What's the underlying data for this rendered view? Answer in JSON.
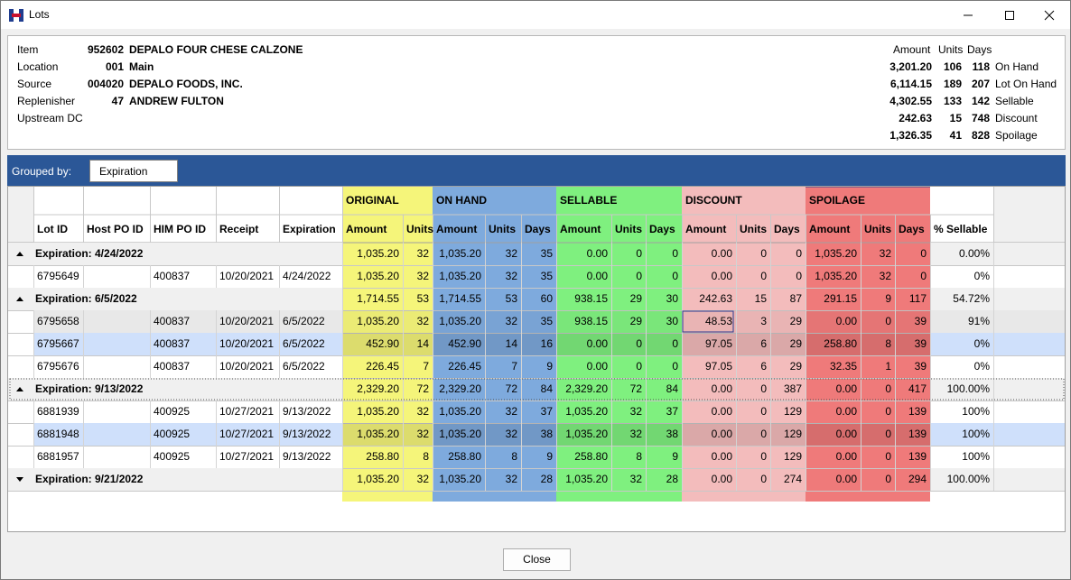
{
  "window": {
    "title": "Lots"
  },
  "info": {
    "labels": [
      "Item",
      "Location",
      "Source",
      "Replenisher",
      "Upstream DC"
    ],
    "codes": [
      "952602",
      "001",
      "004020",
      "47",
      ""
    ],
    "names": [
      "DEPALO FOUR CHESE CALZONE",
      "Main",
      "DEPALO FOODS, INC.",
      "ANDREW FULTON",
      ""
    ],
    "summary_headers": [
      "Amount",
      "Units",
      "Days"
    ],
    "summary": [
      {
        "amount": "3,201.20",
        "units": "106",
        "days": "118",
        "label": "On Hand"
      },
      {
        "amount": "6,114.15",
        "units": "189",
        "days": "207",
        "label": "Lot On Hand"
      },
      {
        "amount": "4,302.55",
        "units": "133",
        "days": "142",
        "label": "Sellable"
      },
      {
        "amount": "242.63",
        "units": "15",
        "days": "748",
        "label": "Discount"
      },
      {
        "amount": "1,326.35",
        "units": "41",
        "days": "828",
        "label": "Spoilage"
      }
    ]
  },
  "group": {
    "label": "Grouped by:",
    "value": "Expiration"
  },
  "bands": [
    "ORIGINAL",
    "ON HAND",
    "SELLABLE",
    "DISCOUNT",
    "SPOILAGE"
  ],
  "columns": [
    "Lot ID",
    "Host PO ID",
    "HIM PO ID",
    "Receipt",
    "Expiration",
    "Amount",
    "Units",
    "Amount",
    "Units",
    "Days",
    "Amount",
    "Units",
    "Days",
    "Amount",
    "Units",
    "Days",
    "Amount",
    "Units",
    "Days",
    "% Sellable"
  ],
  "rows": [
    {
      "type": "group",
      "exp": "down",
      "label": "Expiration: 4/24/2022",
      "vals": [
        "1,035.20",
        "32",
        "1,035.20",
        "32",
        "35",
        "0.00",
        "0",
        "0",
        "0.00",
        "0",
        "0",
        "1,035.20",
        "32",
        "0",
        "0.00%"
      ]
    },
    {
      "type": "data",
      "lot": "6795649",
      "host": "",
      "him": "400837",
      "receipt": "10/20/2021",
      "expiration": "4/24/2022",
      "vals": [
        "1,035.20",
        "32",
        "1,035.20",
        "32",
        "35",
        "0.00",
        "0",
        "0",
        "0.00",
        "0",
        "0",
        "1,035.20",
        "32",
        "0",
        "0%"
      ]
    },
    {
      "type": "group",
      "exp": "down",
      "label": "Expiration: 6/5/2022",
      "vals": [
        "1,714.55",
        "53",
        "1,714.55",
        "53",
        "60",
        "938.15",
        "29",
        "30",
        "242.63",
        "15",
        "87",
        "291.15",
        "9",
        "117",
        "54.72%"
      ]
    },
    {
      "type": "data",
      "lot": "6795658",
      "host": "",
      "him": "400837",
      "receipt": "10/20/2021",
      "expiration": "6/5/2022",
      "vals": [
        "1,035.20",
        "32",
        "1,035.20",
        "32",
        "35",
        "938.15",
        "29",
        "30",
        "48.53",
        "3",
        "29",
        "0.00",
        "0",
        "39",
        "91%"
      ]
    },
    {
      "type": "data",
      "lot": "6795667",
      "host": "",
      "him": "400837",
      "receipt": "10/20/2021",
      "expiration": "6/5/2022",
      "vals": [
        "452.90",
        "14",
        "452.90",
        "14",
        "16",
        "0.00",
        "0",
        "0",
        "97.05",
        "6",
        "29",
        "258.80",
        "8",
        "39",
        "0%"
      ]
    },
    {
      "type": "data",
      "lot": "6795676",
      "host": "",
      "him": "400837",
      "receipt": "10/20/2021",
      "expiration": "6/5/2022",
      "vals": [
        "226.45",
        "7",
        "226.45",
        "7",
        "9",
        "0.00",
        "0",
        "0",
        "97.05",
        "6",
        "29",
        "32.35",
        "1",
        "39",
        "0%"
      ]
    },
    {
      "type": "group",
      "exp": "down",
      "label": "Expiration: 9/13/2022",
      "vals": [
        "2,329.20",
        "72",
        "2,329.20",
        "72",
        "84",
        "2,329.20",
        "72",
        "84",
        "0.00",
        "0",
        "387",
        "0.00",
        "0",
        "417",
        "100.00%"
      ]
    },
    {
      "type": "data",
      "lot": "6881939",
      "host": "",
      "him": "400925",
      "receipt": "10/27/2021",
      "expiration": "9/13/2022",
      "vals": [
        "1,035.20",
        "32",
        "1,035.20",
        "32",
        "37",
        "1,035.20",
        "32",
        "37",
        "0.00",
        "0",
        "129",
        "0.00",
        "0",
        "139",
        "100%"
      ]
    },
    {
      "type": "data",
      "lot": "6881948",
      "host": "",
      "him": "400925",
      "receipt": "10/27/2021",
      "expiration": "9/13/2022",
      "vals": [
        "1,035.20",
        "32",
        "1,035.20",
        "32",
        "38",
        "1,035.20",
        "32",
        "38",
        "0.00",
        "0",
        "129",
        "0.00",
        "0",
        "139",
        "100%"
      ]
    },
    {
      "type": "data",
      "lot": "6881957",
      "host": "",
      "him": "400925",
      "receipt": "10/27/2021",
      "expiration": "9/13/2022",
      "vals": [
        "258.80",
        "8",
        "258.80",
        "8",
        "9",
        "258.80",
        "8",
        "9",
        "0.00",
        "0",
        "129",
        "0.00",
        "0",
        "139",
        "100%"
      ]
    },
    {
      "type": "group",
      "exp": "right",
      "label": "Expiration: 9/21/2022",
      "vals": [
        "1,035.20",
        "32",
        "1,035.20",
        "32",
        "28",
        "1,035.20",
        "32",
        "28",
        "0.00",
        "0",
        "274",
        "0.00",
        "0",
        "294",
        "100.00%"
      ]
    }
  ],
  "footer": {
    "close_label": "Close"
  },
  "colors": {
    "original": "#f5f57a",
    "onhand": "#7eaadd",
    "sellable": "#7ff07f",
    "discount": "#f3bcbc",
    "spoilage": "#ef7a7a",
    "group_bar": "#2b5797"
  }
}
